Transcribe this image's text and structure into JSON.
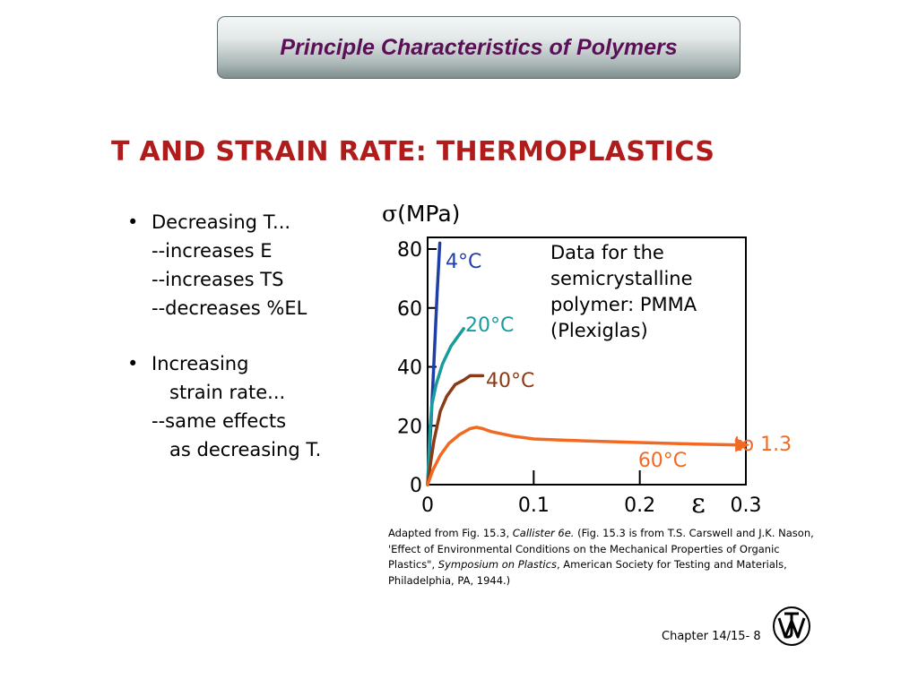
{
  "header": {
    "title": "Principle Characteristics of Polymers"
  },
  "slide": {
    "heading": "T AND STRAIN RATE:  THERMOPLASTICS"
  },
  "bullets": [
    {
      "bullet": "•",
      "title": "Decreasing T...",
      "sub": [
        "--increases E",
        "--increases TS",
        "--decreases %EL"
      ]
    },
    {
      "bullet": "•",
      "title": "Increasing",
      "continuation": "strain rate...",
      "sub": [
        "--same effects"
      ],
      "sub_continuation": "as decreasing T."
    }
  ],
  "chart_data": {
    "type": "line",
    "ylabel_symbol": "σ",
    "ylabel_unit": "(MPa)",
    "xlabel": "ε",
    "xlim": [
      0,
      0.3
    ],
    "ylim": [
      0,
      82
    ],
    "x_ticks": [
      0,
      0.1,
      0.2,
      0.3
    ],
    "x_tick_labels": [
      "0",
      "0.1",
      "0.2",
      "0.3"
    ],
    "y_ticks": [
      0,
      20,
      40,
      60,
      80
    ],
    "y_tick_labels": [
      "0",
      "20",
      "40",
      "60",
      "80"
    ],
    "note_lines": [
      "Data for the",
      "semicrystalline",
      "polymer: PMMA",
      "(Plexiglas)"
    ],
    "series": [
      {
        "name": "4°C",
        "color": "#1f3fa8",
        "x": [
          0,
          0.003,
          0.006,
          0.009,
          0.0115
        ],
        "y": [
          0,
          20,
          42,
          65,
          85
        ]
      },
      {
        "name": "20°C",
        "color": "#1a9c9c",
        "x": [
          0,
          0.002,
          0.004,
          0.008,
          0.014,
          0.022,
          0.03,
          0.034
        ],
        "y": [
          0,
          18,
          27,
          34,
          41,
          47,
          51,
          53
        ]
      },
      {
        "name": "40°C",
        "color": "#8b3a14",
        "x": [
          0,
          0.003,
          0.006,
          0.012,
          0.018,
          0.026,
          0.034,
          0.04,
          0.046,
          0.052
        ],
        "y": [
          0,
          8,
          15,
          25,
          30,
          34,
          35.5,
          37,
          37,
          37
        ]
      },
      {
        "name": "60°C",
        "color": "#f26a21",
        "end_label": "to 1.3",
        "x": [
          0,
          0.005,
          0.012,
          0.02,
          0.03,
          0.04,
          0.046,
          0.052,
          0.06,
          0.08,
          0.1,
          0.15,
          0.2,
          0.25,
          0.29
        ],
        "y": [
          0,
          5,
          10,
          14,
          17,
          19,
          19.5,
          19,
          18,
          16.5,
          15.5,
          14.8,
          14.3,
          13.8,
          13.5
        ]
      }
    ]
  },
  "caption": {
    "p1": "Adapted from Fig. 15.3, ",
    "i1": "Callister 6e.",
    "p2": "  (Fig. 15.3 is from T.S. Carswell and J.K. Nason, 'Effect of Environmental Conditions on the Mechanical Properties of Organic Plastics\", ",
    "i2": "Symposium on Plastics",
    "p3": ", American Society for Testing and Materials, Philadelphia, PA, 1944.)"
  },
  "footer": {
    "chapter": "Chapter 14/15- 8"
  },
  "icons": {
    "logo": "publisher-logo-icon"
  }
}
